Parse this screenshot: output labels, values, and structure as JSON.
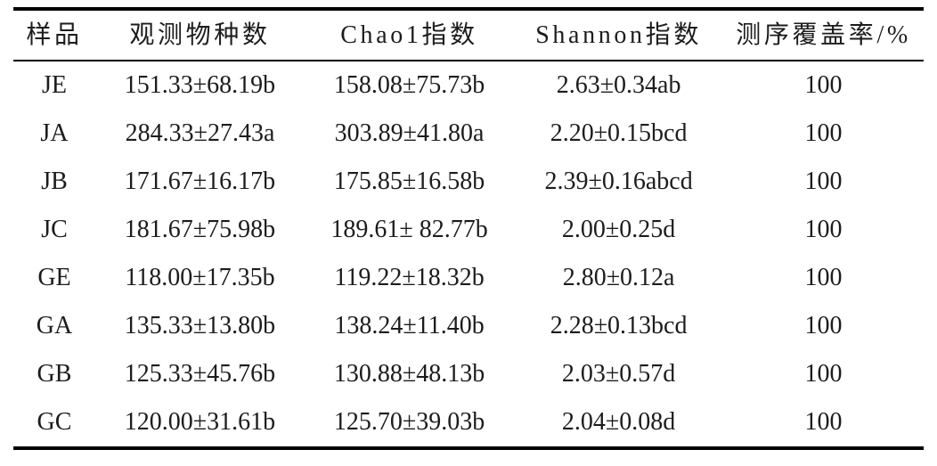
{
  "table": {
    "columns": [
      {
        "key": "sample",
        "label": "样品"
      },
      {
        "key": "observed",
        "label": "观测物种数"
      },
      {
        "key": "chao1",
        "label": "Chao1指数"
      },
      {
        "key": "shannon",
        "label": "Shannon指数"
      },
      {
        "key": "coverage",
        "label": "测序覆盖率/%"
      }
    ],
    "rows": [
      {
        "sample": "JE",
        "observed": "151.33±68.19b",
        "chao1": "158.08±75.73b",
        "shannon": "2.63±0.34ab",
        "coverage": "100"
      },
      {
        "sample": "JA",
        "observed": "284.33±27.43a",
        "chao1": "303.89±41.80a",
        "shannon": "2.20±0.15bcd",
        "coverage": "100"
      },
      {
        "sample": "JB",
        "observed": "171.67±16.17b",
        "chao1": "175.85±16.58b",
        "shannon": "2.39±0.16abcd",
        "coverage": "100"
      },
      {
        "sample": "JC",
        "observed": "181.67±75.98b",
        "chao1": "189.61± 82.77b",
        "shannon": "2.00±0.25d",
        "coverage": "100"
      },
      {
        "sample": "GE",
        "observed": "118.00±17.35b",
        "chao1": "119.22±18.32b",
        "shannon": "2.80±0.12a",
        "coverage": "100"
      },
      {
        "sample": "GA",
        "observed": "135.33±13.80b",
        "chao1": "138.24±11.40b",
        "shannon": "2.28±0.13bcd",
        "coverage": "100"
      },
      {
        "sample": "GB",
        "observed": "125.33±45.76b",
        "chao1": "130.88±48.13b",
        "shannon": "2.03±0.57d",
        "coverage": "100"
      },
      {
        "sample": "GC",
        "observed": "120.00±31.61b",
        "chao1": "125.70±39.03b",
        "shannon": "2.04±0.08d",
        "coverage": "100"
      }
    ]
  },
  "colors": {
    "text": "#1c1c1c",
    "rule": "#000000",
    "background": "#ffffff"
  }
}
